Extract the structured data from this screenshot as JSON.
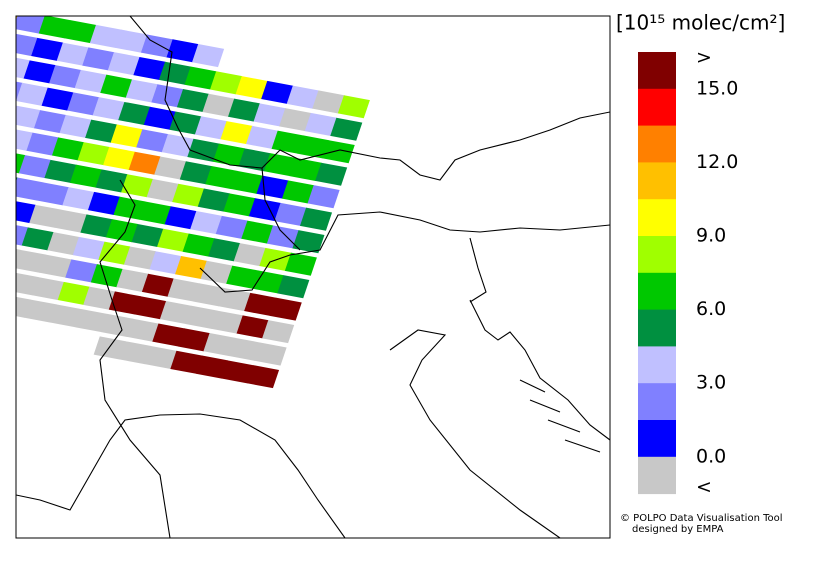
{
  "legend": {
    "title": "[10¹⁵ molec/cm²]",
    "colors": [
      "#800000",
      "#ff0000",
      "#ff8000",
      "#ffc000",
      "#ffff00",
      "#a0ff00",
      "#00c800",
      "#009040",
      "#c0c0ff",
      "#8080ff",
      "#0000ff",
      "#c8c8c8"
    ],
    "labels": [
      ">",
      "15.0",
      "12.0",
      "9.0",
      "6.0",
      "3.0",
      "0.0",
      "<"
    ]
  },
  "credits": [
    "© POLPO Data Visualisation Tool",
    "designed by EMPA"
  ],
  "swath": [
    [
      8,
      3,
      9,
      6,
      6,
      8,
      8,
      9,
      10,
      8,
      null,
      null,
      null,
      null,
      null,
      null
    ],
    [
      8,
      8,
      9,
      10,
      8,
      9,
      8,
      10,
      7,
      6,
      5,
      4,
      10,
      8,
      11,
      5
    ],
    [
      9,
      8,
      8,
      10,
      9,
      8,
      6,
      8,
      9,
      7,
      11,
      7,
      8,
      11,
      8,
      7
    ],
    [
      8,
      8,
      9,
      8,
      10,
      9,
      8,
      7,
      10,
      7,
      8,
      4,
      8,
      6,
      6,
      6
    ],
    [
      9,
      8,
      8,
      8,
      9,
      8,
      7,
      4,
      9,
      8,
      7,
      6,
      7,
      6,
      6,
      7
    ],
    [
      6,
      9,
      11,
      8,
      9,
      6,
      5,
      4,
      2,
      11,
      7,
      6,
      6,
      10,
      6,
      9
    ],
    [
      7,
      8,
      9,
      6,
      9,
      7,
      6,
      7,
      5,
      11,
      5,
      7,
      6,
      10,
      9,
      7
    ],
    [
      9,
      10,
      8,
      7,
      9,
      9,
      8,
      10,
      6,
      6,
      10,
      8,
      9,
      6,
      9,
      7
    ],
    [
      6,
      9,
      9,
      8,
      10,
      11,
      11,
      7,
      6,
      7,
      5,
      6,
      7,
      11,
      5,
      6
    ],
    [
      6,
      7,
      8,
      9,
      9,
      7,
      11,
      8,
      5,
      11,
      8,
      3,
      11,
      6,
      6,
      7
    ],
    [
      null,
      9,
      6,
      8,
      11,
      11,
      11,
      9,
      6,
      11,
      0,
      11,
      11,
      11,
      0,
      0
    ],
    [
      null,
      null,
      null,
      9,
      7,
      11,
      11,
      5,
      11,
      0,
      0,
      11,
      11,
      11,
      0,
      11
    ],
    [
      null,
      null,
      null,
      null,
      null,
      11,
      11,
      11,
      11,
      11,
      11,
      0,
      0,
      11,
      11,
      11
    ],
    [
      null,
      null,
      null,
      null,
      null,
      null,
      null,
      null,
      null,
      11,
      11,
      11,
      0,
      0,
      0,
      0
    ]
  ]
}
